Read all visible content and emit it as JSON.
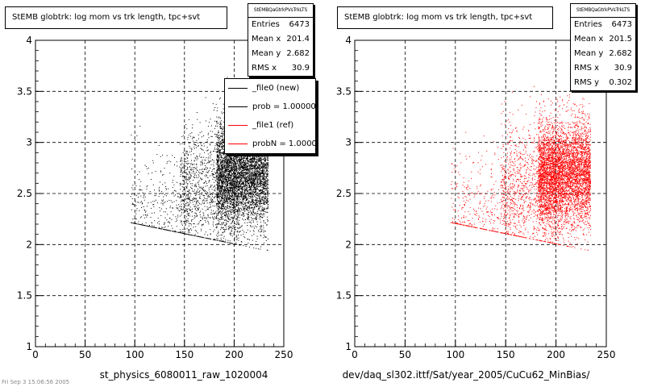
{
  "colors": {
    "new": "#000000",
    "ref": "#ff0000"
  },
  "footer": {
    "text": "Fri Sep 3 15:06:56 2005"
  },
  "chart_data": [
    {
      "type": "scatter",
      "title": "StEMB globtrk: log mom vs trk length, tpc+svt",
      "stats_name": "StEMBQaGtrkPVsTrkLTS",
      "stats": [
        {
          "label": "Entries",
          "value": "6473"
        },
        {
          "label": "Mean x",
          "value": "201.4"
        },
        {
          "label": "Mean y",
          "value": "2.682"
        },
        {
          "label": "RMS x",
          "value": "30.9"
        }
      ],
      "legend": [
        {
          "label": "_file0 (new)",
          "color": "#000000"
        },
        {
          "label": "prob = 1.000000",
          "color": "#000000"
        },
        {
          "label": "_file1 (ref)",
          "color": "#ff0000"
        },
        {
          "label": "probN = 1.000000",
          "color": "#ff0000"
        }
      ],
      "xlabel": "st_physics_6080011_raw_1020004",
      "xlim": [
        0,
        250
      ],
      "ylim": [
        1,
        4
      ],
      "xticks": [
        0,
        50,
        100,
        150,
        200,
        250
      ],
      "yticks": [
        1,
        1.5,
        2,
        2.5,
        3,
        3.5,
        4
      ],
      "grid": true,
      "series": [
        {
          "color": "#000000",
          "entries": 6473,
          "mean_x": 201.4,
          "mean_y": 2.682,
          "rms_x": 30.9
        }
      ]
    },
    {
      "type": "scatter",
      "title": "StEMB globtrk: log mom vs trk length, tpc+svt",
      "stats_name": "StEMBQaGtrkPVsTrkLTS",
      "stats": [
        {
          "label": "Entries",
          "value": "6473"
        },
        {
          "label": "Mean x",
          "value": "201.5"
        },
        {
          "label": "Mean y",
          "value": "2.682"
        },
        {
          "label": "RMS x",
          "value": "30.9"
        },
        {
          "label": "RMS y",
          "value": "0.302"
        }
      ],
      "xlabel": "dev/daq_sl302.ittf/Sat/year_2005/CuCu62_MinBias/",
      "xlim": [
        0,
        250
      ],
      "ylim": [
        1,
        4
      ],
      "xticks": [
        0,
        50,
        100,
        150,
        200,
        250
      ],
      "yticks": [
        1,
        1.5,
        2,
        2.5,
        3,
        3.5,
        4
      ],
      "grid": true,
      "series": [
        {
          "color": "#ff0000",
          "entries": 6473,
          "mean_x": 201.5,
          "mean_y": 2.682,
          "rms_x": 30.9,
          "rms_y": 0.302
        }
      ]
    }
  ]
}
